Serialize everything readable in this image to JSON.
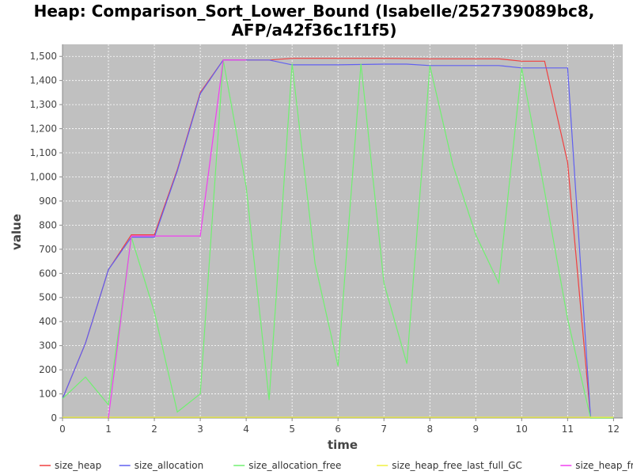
{
  "chart_data": {
    "type": "line",
    "title_line1": "Heap: Comparison_Sort_Lower_Bound (Isabelle/252739089bc8,",
    "title_line2": "AFP/a42f36c1f1f5)",
    "xlabel": "time",
    "ylabel": "value",
    "xlim": [
      0,
      12.2
    ],
    "ylim": [
      0,
      1550
    ],
    "xticks": [
      0,
      1,
      2,
      3,
      4,
      5,
      6,
      7,
      8,
      9,
      10,
      11,
      12
    ],
    "xtick_labels": [
      "0",
      "1",
      "2",
      "3",
      "4",
      "5",
      "6",
      "7",
      "8",
      "9",
      "10",
      "11",
      "12"
    ],
    "yticks": [
      0,
      100,
      200,
      300,
      400,
      500,
      600,
      700,
      800,
      900,
      1000,
      1100,
      1200,
      1300,
      1400,
      1500
    ],
    "ytick_labels": [
      "0",
      "100",
      "200",
      "300",
      "400",
      "500",
      "600",
      "700",
      "800",
      "900",
      "1,000",
      "1,100",
      "1,200",
      "1,300",
      "1,400",
      "1,500"
    ],
    "grid": true,
    "legend_position": "bottom",
    "plot_background": "#c0c0c0",
    "series": [
      {
        "name": "size_heap",
        "color": "#f04040",
        "points": [
          [
            0,
            80
          ],
          [
            0.5,
            310
          ],
          [
            1,
            615
          ],
          [
            1.5,
            760
          ],
          [
            2,
            760
          ],
          [
            2.5,
            1030
          ],
          [
            3,
            1350
          ],
          [
            3.5,
            1485
          ],
          [
            4,
            1485
          ],
          [
            4.5,
            1485
          ],
          [
            5,
            1492
          ],
          [
            6,
            1492
          ],
          [
            7,
            1492
          ],
          [
            8,
            1490
          ],
          [
            9,
            1490
          ],
          [
            9.5,
            1490
          ],
          [
            10,
            1480
          ],
          [
            10.5,
            1480
          ],
          [
            11,
            1060
          ],
          [
            11.5,
            0
          ],
          [
            12,
            0
          ]
        ]
      },
      {
        "name": "size_allocation",
        "color": "#6060f0",
        "points": [
          [
            0,
            80
          ],
          [
            0.5,
            310
          ],
          [
            1,
            615
          ],
          [
            1.5,
            750
          ],
          [
            2,
            750
          ],
          [
            2.5,
            1025
          ],
          [
            3,
            1345
          ],
          [
            3.5,
            1485
          ],
          [
            4,
            1485
          ],
          [
            4.5,
            1485
          ],
          [
            5,
            1465
          ],
          [
            6,
            1465
          ],
          [
            7,
            1468
          ],
          [
            7.5,
            1468
          ],
          [
            8,
            1462
          ],
          [
            9,
            1462
          ],
          [
            9.5,
            1462
          ],
          [
            10,
            1452
          ],
          [
            10.5,
            1452
          ],
          [
            11,
            1452
          ],
          [
            11.5,
            0
          ],
          [
            12,
            0
          ]
        ]
      },
      {
        "name": "size_allocation_free",
        "color": "#70f070",
        "points": [
          [
            0,
            80
          ],
          [
            0.5,
            170
          ],
          [
            1,
            55
          ],
          [
            1.5,
            750
          ],
          [
            2,
            440
          ],
          [
            2.5,
            25
          ],
          [
            3,
            100
          ],
          [
            3.5,
            1485
          ],
          [
            4,
            960
          ],
          [
            4.5,
            75
          ],
          [
            5,
            1470
          ],
          [
            5.5,
            640
          ],
          [
            6,
            215
          ],
          [
            6.5,
            1470
          ],
          [
            7,
            560
          ],
          [
            7.5,
            225
          ],
          [
            8,
            1462
          ],
          [
            8.5,
            1050
          ],
          [
            9,
            760
          ],
          [
            9.5,
            560
          ],
          [
            10,
            1452
          ],
          [
            10.5,
            940
          ],
          [
            11,
            410
          ],
          [
            11.5,
            0
          ],
          [
            12,
            0
          ]
        ]
      },
      {
        "name": "size_heap_free_last_full_GC",
        "color": "#f0f040",
        "points": [
          [
            0,
            3
          ],
          [
            1,
            3
          ],
          [
            2,
            3
          ],
          [
            3,
            3
          ],
          [
            4,
            3
          ],
          [
            5,
            3
          ],
          [
            6,
            3
          ],
          [
            7,
            3
          ],
          [
            8,
            3
          ],
          [
            9,
            3
          ],
          [
            10,
            3
          ],
          [
            11,
            3
          ],
          [
            11.5,
            3
          ],
          [
            12,
            3
          ]
        ]
      },
      {
        "name": "size_heap_free_last_GC",
        "color": "#f040f0",
        "points": [
          [
            1,
            0
          ],
          [
            1.5,
            755
          ],
          [
            2,
            755
          ],
          [
            2.5,
            755
          ],
          [
            3,
            755
          ],
          [
            3.5,
            1485
          ],
          [
            4,
            1485
          ]
        ]
      }
    ]
  }
}
